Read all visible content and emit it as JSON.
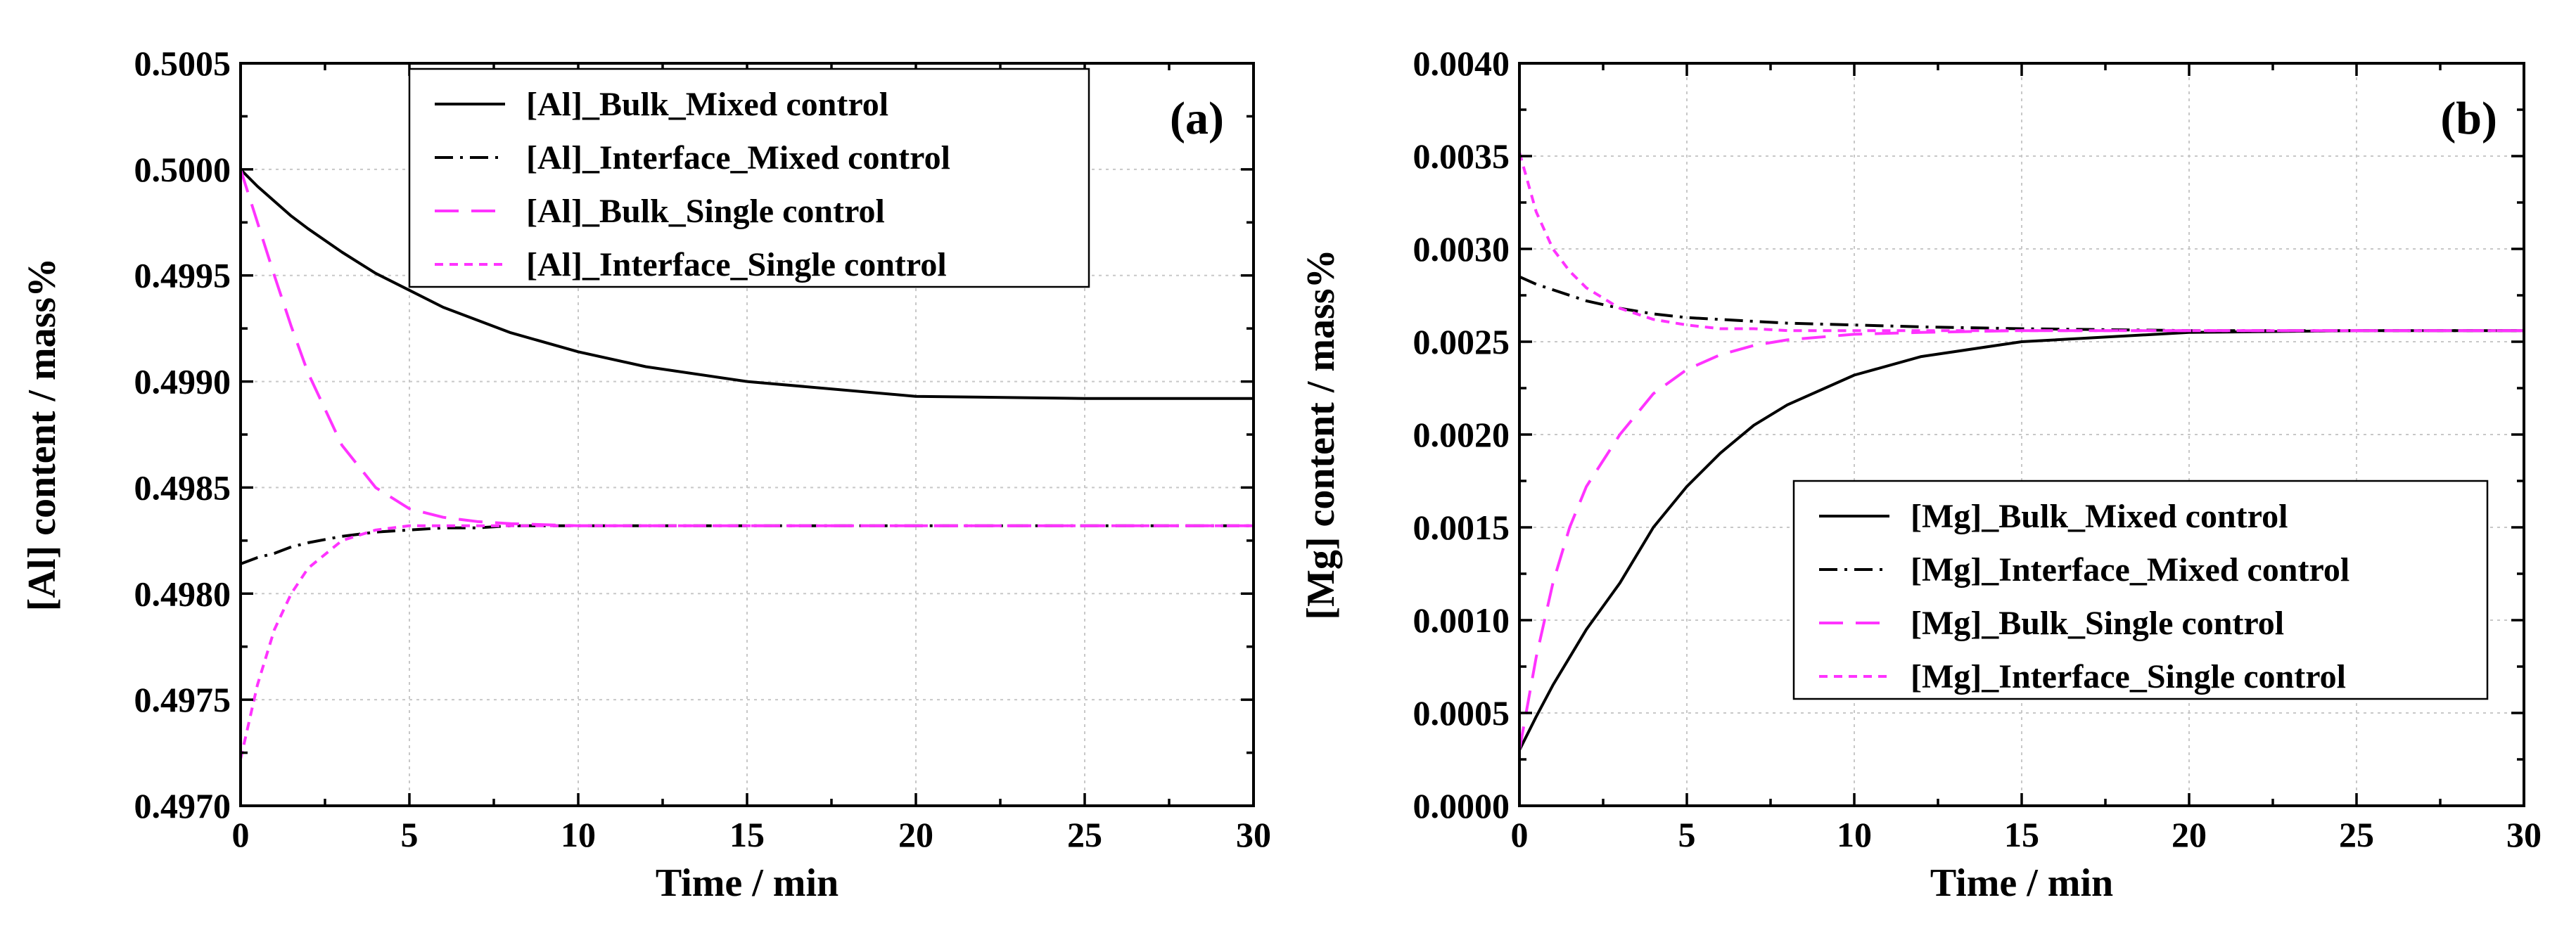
{
  "chart_data": [
    {
      "type": "line",
      "panel_label": "(a)",
      "xlabel": "Time / min",
      "ylabel": "[Al] content / mass%",
      "xlim": [
        0,
        30
      ],
      "ylim": [
        0.497,
        0.5005
      ],
      "xticks": [
        0,
        5,
        10,
        15,
        20,
        25,
        30
      ],
      "xtick_labels": [
        "0",
        "5",
        "10",
        "15",
        "20",
        "25",
        "30"
      ],
      "yticks": [
        0.497,
        0.4975,
        0.498,
        0.4985,
        0.499,
        0.4995,
        0.5,
        0.5005
      ],
      "ytick_labels": [
        "0.4970",
        "0.4975",
        "0.4980",
        "0.4985",
        "0.4990",
        "0.4995",
        "0.5000",
        "0.5005"
      ],
      "grid": true,
      "legend_position": "top-right",
      "x": [
        0,
        0.5,
        1,
        1.5,
        2,
        3,
        4,
        5,
        6,
        7,
        8,
        10,
        12,
        15,
        20,
        25,
        30
      ],
      "series": [
        {
          "name": "[Al]_Bulk_Mixed control",
          "color": "#000000",
          "dash": "solid",
          "values": [
            0.5,
            0.49992,
            0.49985,
            0.49978,
            0.49972,
            0.49961,
            0.49951,
            0.49943,
            0.49935,
            0.49929,
            0.49923,
            0.49914,
            0.49907,
            0.499,
            0.49893,
            0.49892,
            0.49892
          ]
        },
        {
          "name": "[Al]_Interface_Mixed control",
          "color": "#000000",
          "dash": "dashdot",
          "values": [
            0.49814,
            0.49817,
            0.49819,
            0.49822,
            0.49824,
            0.49827,
            0.49829,
            0.4983,
            0.49831,
            0.49831,
            0.49832,
            0.49832,
            0.49832,
            0.49832,
            0.49832,
            0.49832,
            0.49832
          ]
        },
        {
          "name": "[Al]_Bulk_Single control",
          "color": "#ff33ff",
          "dash": "dashed",
          "values": [
            0.5,
            0.49975,
            0.4995,
            0.49926,
            0.49904,
            0.4987,
            0.4985,
            0.4984,
            0.49836,
            0.49834,
            0.49833,
            0.49832,
            0.49832,
            0.49832,
            0.49832,
            0.49832,
            0.49832
          ]
        },
        {
          "name": "[Al]_Interface_Single control",
          "color": "#ff33ff",
          "dash": "dotted",
          "values": [
            0.49722,
            0.49757,
            0.49783,
            0.498,
            0.49812,
            0.49825,
            0.4983,
            0.49832,
            0.49832,
            0.49832,
            0.49832,
            0.49832,
            0.49832,
            0.49832,
            0.49832,
            0.49832,
            0.49832
          ]
        }
      ]
    },
    {
      "type": "line",
      "panel_label": "(b)",
      "xlabel": "Time / min",
      "ylabel": "[Mg] content / mass%",
      "xlim": [
        0,
        30
      ],
      "ylim": [
        0.0,
        0.004
      ],
      "xticks": [
        0,
        5,
        10,
        15,
        20,
        25,
        30
      ],
      "xtick_labels": [
        "0",
        "5",
        "10",
        "15",
        "20",
        "25",
        "30"
      ],
      "yticks": [
        0.0,
        0.0005,
        0.001,
        0.0015,
        0.002,
        0.0025,
        0.003,
        0.0035,
        0.004
      ],
      "ytick_labels": [
        "0.0000",
        "0.0005",
        "0.0010",
        "0.0015",
        "0.0020",
        "0.0025",
        "0.0030",
        "0.0035",
        "0.0040"
      ],
      "grid": true,
      "legend_position": "bottom-right",
      "x": [
        0,
        0.5,
        1,
        1.5,
        2,
        3,
        4,
        5,
        6,
        7,
        8,
        10,
        12,
        15,
        20,
        25,
        30
      ],
      "series": [
        {
          "name": "[Mg]_Bulk_Mixed control",
          "color": "#000000",
          "dash": "solid",
          "values": [
            0.0003,
            0.00048,
            0.00065,
            0.0008,
            0.00095,
            0.0012,
            0.0015,
            0.00172,
            0.0019,
            0.00205,
            0.00216,
            0.00232,
            0.00242,
            0.0025,
            0.00255,
            0.00256,
            0.00256
          ]
        },
        {
          "name": "[Mg]_Interface_Mixed control",
          "color": "#000000",
          "dash": "dashdot",
          "values": [
            0.00285,
            0.00281,
            0.00278,
            0.00275,
            0.00272,
            0.00268,
            0.00265,
            0.00263,
            0.00262,
            0.00261,
            0.0026,
            0.00259,
            0.00258,
            0.00257,
            0.00256,
            0.00256,
            0.00256
          ]
        },
        {
          "name": "[Mg]_Bulk_Single control",
          "color": "#ff33ff",
          "dash": "dashed",
          "values": [
            0.0003,
            0.0008,
            0.0012,
            0.0015,
            0.00172,
            0.002,
            0.00222,
            0.00235,
            0.00243,
            0.00248,
            0.00251,
            0.00254,
            0.00255,
            0.00256,
            0.00256,
            0.00256,
            0.00256
          ]
        },
        {
          "name": "[Mg]_Interface_Single control",
          "color": "#ff33ff",
          "dash": "dotted",
          "values": [
            0.00352,
            0.0032,
            0.003,
            0.00288,
            0.00279,
            0.00268,
            0.00262,
            0.00259,
            0.00257,
            0.00257,
            0.00256,
            0.00256,
            0.00256,
            0.00256,
            0.00256,
            0.00256,
            0.00256
          ]
        }
      ]
    }
  ]
}
